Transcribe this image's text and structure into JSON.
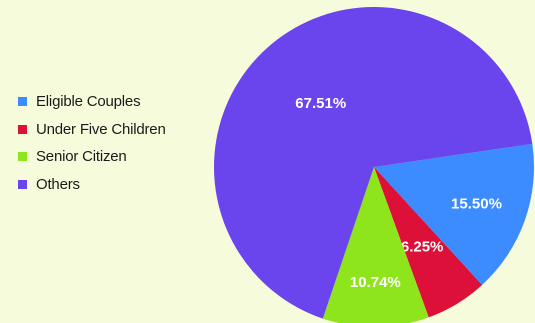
{
  "chart_data": {
    "type": "pie",
    "title": "",
    "slices": [
      {
        "label": "Eligible Couples",
        "value": 15.5,
        "display": "15.50%",
        "color": "#3c8cff"
      },
      {
        "label": "Under Five Children",
        "value": 6.25,
        "display": "6.25%",
        "color": "#dc1038"
      },
      {
        "label": "Senior Citizen",
        "value": 10.74,
        "display": "10.74%",
        "color": "#8ee51c"
      },
      {
        "label": "Others",
        "value": 67.51,
        "display": "67.51%",
        "color": "#6a44ec"
      }
    ],
    "legend_position": "left"
  },
  "legend": {
    "items": [
      {
        "label": "Eligible Couples",
        "color": "#3c8cff"
      },
      {
        "label": "Under Five Children",
        "color": "#dc1038"
      },
      {
        "label": "Senior Citizen",
        "color": "#8ee51c"
      },
      {
        "label": "Others",
        "color": "#6a44ec"
      }
    ]
  },
  "colors": {
    "background": "#f6fbdc"
  }
}
